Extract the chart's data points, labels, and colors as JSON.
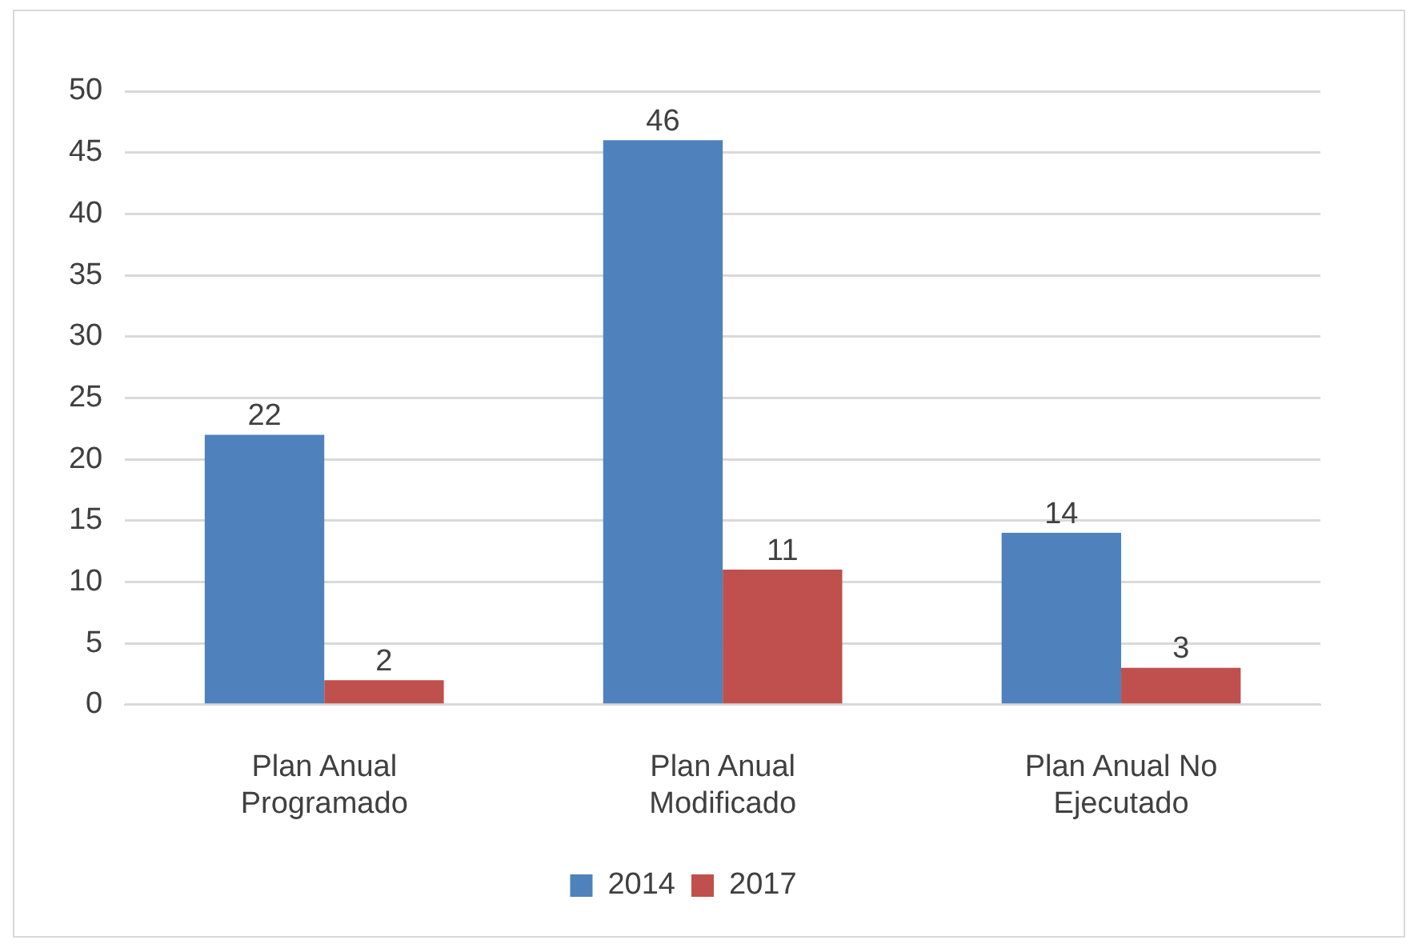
{
  "chart_data": {
    "type": "bar",
    "categories": [
      "Plan Anual Programado",
      "Plan Anual Modificado",
      "Plan Anual No Ejecutado"
    ],
    "series": [
      {
        "name": "2014",
        "color": "#4f81bd",
        "values": [
          22,
          46,
          14
        ]
      },
      {
        "name": "2017",
        "color": "#c0504d",
        "values": [
          2,
          11,
          3
        ]
      }
    ],
    "ylim": [
      0,
      50
    ],
    "yticks": [
      0,
      5,
      10,
      15,
      20,
      25,
      30,
      35,
      40,
      45,
      50
    ],
    "grid": "y",
    "legend": "bottom",
    "data_labels": true
  }
}
